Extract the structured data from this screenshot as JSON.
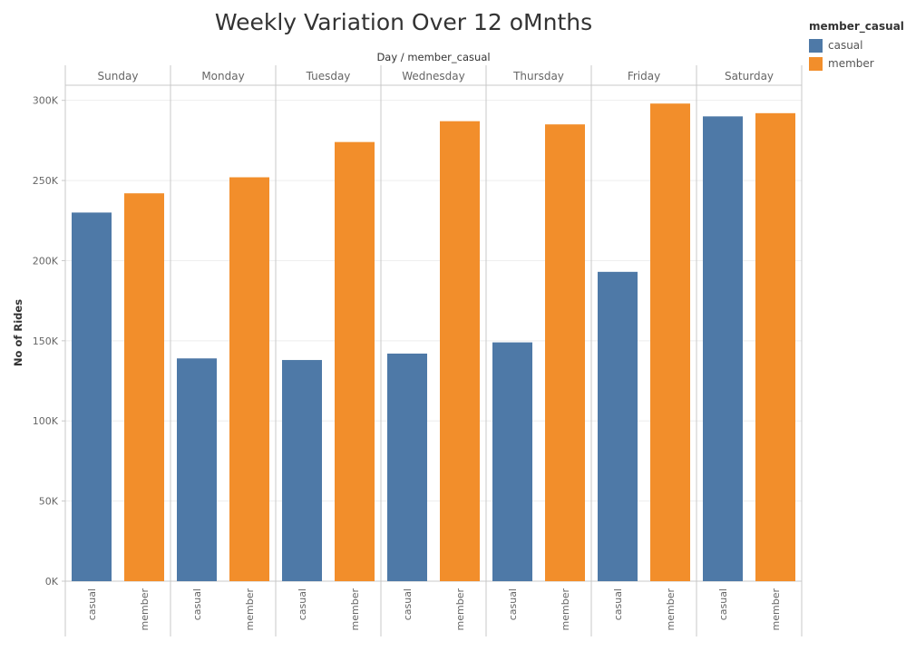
{
  "title": "Weekly Variation Over 12 oMnths",
  "legend": {
    "title": "member_casual",
    "items": [
      {
        "label": "casual",
        "color": "#4e79a7"
      },
      {
        "label": "member",
        "color": "#f28e2b"
      }
    ]
  },
  "chart_data": {
    "type": "bar",
    "column_header": "Day / member_casual",
    "ylabel": "No of Rides",
    "ylim": [
      0,
      310000
    ],
    "yticks": [
      0,
      50000,
      100000,
      150000,
      200000,
      250000,
      300000
    ],
    "ytick_labels": [
      "0K",
      "50K",
      "100K",
      "150K",
      "200K",
      "250K",
      "300K"
    ],
    "categories": [
      "Sunday",
      "Monday",
      "Tuesday",
      "Wednesday",
      "Thursday",
      "Friday",
      "Saturday"
    ],
    "subcategories": [
      "casual",
      "member"
    ],
    "series": [
      {
        "name": "casual",
        "color": "#4e79a7",
        "values": [
          230000,
          139000,
          138000,
          142000,
          149000,
          193000,
          290000
        ]
      },
      {
        "name": "member",
        "color": "#f28e2b",
        "values": [
          242000,
          252000,
          274000,
          287000,
          285000,
          298000,
          292000
        ]
      }
    ],
    "grid": true
  }
}
